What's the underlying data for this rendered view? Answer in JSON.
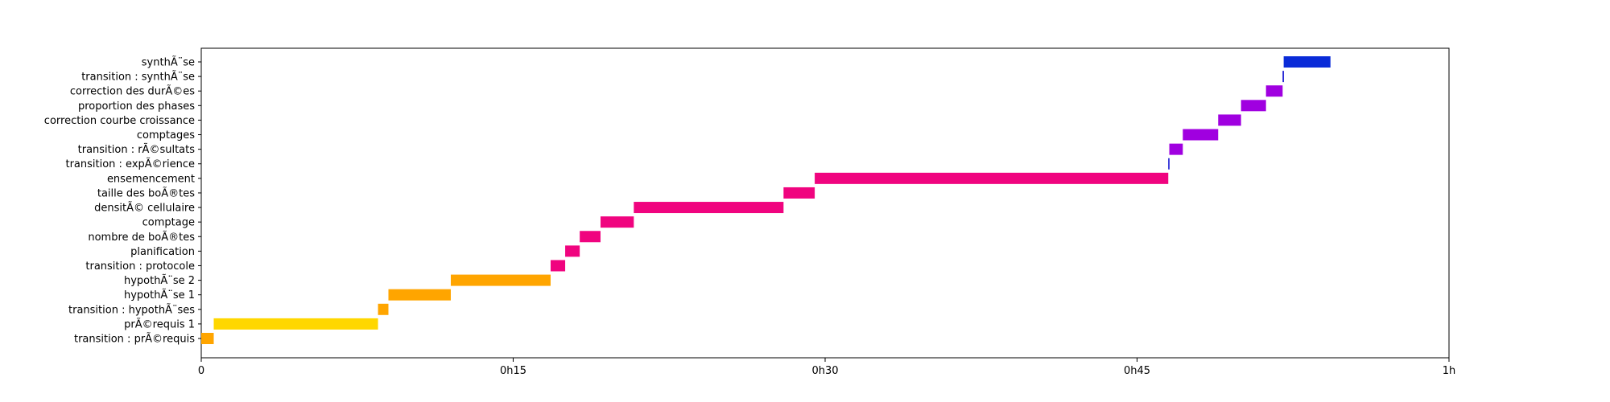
{
  "chart_data": {
    "type": "gantt",
    "title": "",
    "xlabel": "",
    "ylabel": "",
    "x_unit": "minutes",
    "xlim": [
      0,
      60
    ],
    "x_ticks": [
      {
        "value": 0,
        "label": "0"
      },
      {
        "value": 15,
        "label": "0h15"
      },
      {
        "value": 30,
        "label": "0h30"
      },
      {
        "value": 45,
        "label": "0h45"
      },
      {
        "value": 60,
        "label": "1h"
      }
    ],
    "grid": false,
    "legend": "none",
    "tasks": [
      {
        "label": "transition : prÃ©requis",
        "start": 0.0,
        "end": 0.6,
        "color": "#ffa500"
      },
      {
        "label": "prÃ©requis 1",
        "start": 0.6,
        "end": 8.5,
        "color": "#ffd700"
      },
      {
        "label": "transition : hypothÃ¨ses",
        "start": 8.5,
        "end": 9.0,
        "color": "#ffa500"
      },
      {
        "label": "hypothÃ¨se 1",
        "start": 9.0,
        "end": 12.0,
        "color": "#ffa500"
      },
      {
        "label": "hypothÃ¨se 2",
        "start": 12.0,
        "end": 16.8,
        "color": "#ffa500"
      },
      {
        "label": "transition : protocole",
        "start": 16.8,
        "end": 17.5,
        "color": "#f0047f"
      },
      {
        "label": "planification",
        "start": 17.5,
        "end": 18.2,
        "color": "#f0047f"
      },
      {
        "label": "nombre de boÃ®tes",
        "start": 18.2,
        "end": 19.2,
        "color": "#f0047f"
      },
      {
        "label": "comptage",
        "start": 19.2,
        "end": 20.8,
        "color": "#f0047f"
      },
      {
        "label": "densitÃ© cellulaire",
        "start": 20.8,
        "end": 28.0,
        "color": "#f0047f"
      },
      {
        "label": "taille des boÃ®tes",
        "start": 28.0,
        "end": 29.5,
        "color": "#f0047f"
      },
      {
        "label": "ensemencement",
        "start": 29.5,
        "end": 46.5,
        "color": "#f0047f"
      },
      {
        "label": "transition : expÃ©rience",
        "start": 46.5,
        "end": 46.55,
        "color": "#0000cd"
      },
      {
        "label": "transition : rÃ©sultats",
        "start": 46.55,
        "end": 47.2,
        "color": "#a000e0"
      },
      {
        "label": "comptages",
        "start": 47.2,
        "end": 48.9,
        "color": "#a000e0"
      },
      {
        "label": "correction courbe croissance",
        "start": 48.9,
        "end": 50.0,
        "color": "#a000e0"
      },
      {
        "label": "proportion des phases",
        "start": 50.0,
        "end": 51.2,
        "color": "#a000e0"
      },
      {
        "label": "correction des durÃ©es",
        "start": 51.2,
        "end": 52.0,
        "color": "#a000e0"
      },
      {
        "label": "transition : synthÃ¨se",
        "start": 52.0,
        "end": 52.05,
        "color": "#0000cd"
      },
      {
        "label": "synthÃ¨se",
        "start": 52.05,
        "end": 54.3,
        "color": "#0a2bd8"
      }
    ]
  }
}
